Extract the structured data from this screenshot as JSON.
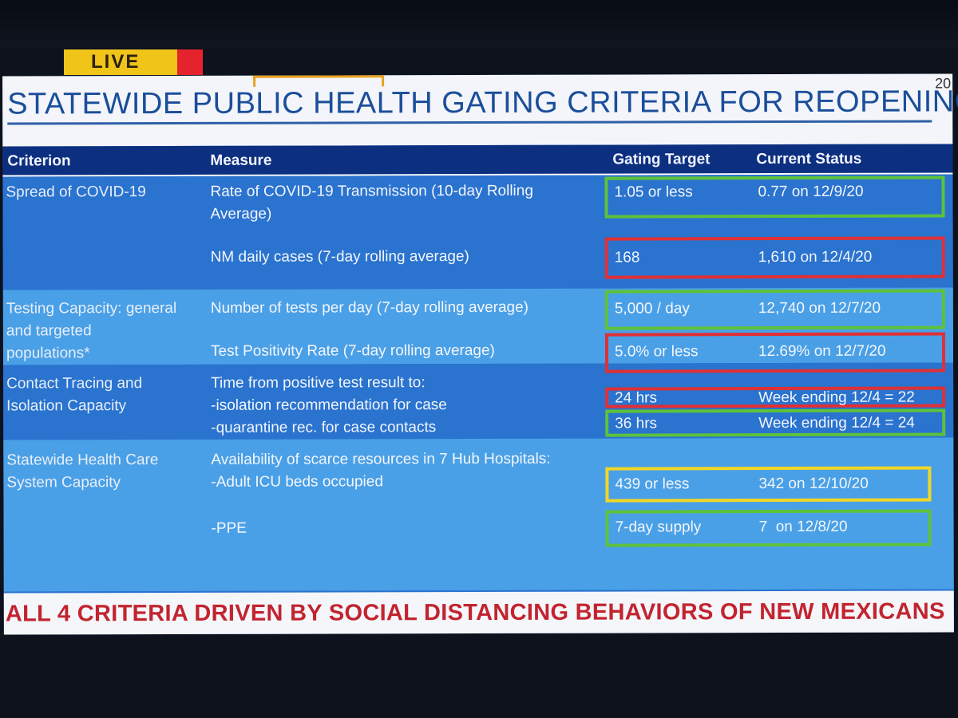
{
  "live_badge": {
    "label": "LIVE"
  },
  "slide": {
    "title": "STATEWIDE PUBLIC HEALTH GATING CRITERIA FOR REOPENING",
    "page_number": "20",
    "headers": {
      "criterion": "Criterion",
      "measure": "Measure",
      "target": "Gating Target",
      "status": "Current Status"
    },
    "criteria": [
      {
        "lines": [
          "Spread of COVID-19"
        ]
      },
      {
        "lines": [
          "Testing Capacity: general",
          "and targeted",
          "populations*"
        ]
      },
      {
        "lines": [
          "Contact Tracing and",
          "Isolation Capacity"
        ]
      },
      {
        "lines": [
          "Statewide Health Care",
          "System Capacity"
        ]
      }
    ],
    "measures": [
      {
        "lines": [
          "Rate of COVID-19 Transmission (10-day Rolling",
          "Average)"
        ]
      },
      {
        "lines": [
          "NM daily cases (7-day rolling average)"
        ]
      },
      {
        "lines": [
          "Number of tests per day (7-day rolling average)"
        ]
      },
      {
        "lines": [
          "Test Positivity Rate (7-day rolling average)"
        ]
      },
      {
        "lines": [
          "Time from positive test result to:",
          "-isolation recommendation for case",
          "-quarantine rec. for case contacts"
        ]
      },
      {
        "lines": [
          "Availability of scarce resources in 7 Hub Hospitals:",
          "-Adult ICU beds occupied"
        ]
      },
      {
        "lines": [
          "-PPE"
        ]
      }
    ],
    "targets": [
      {
        "target": "1.05 or less",
        "status": "0.77 on 12/9/20",
        "border": "green"
      },
      {
        "target": "168",
        "status": "1,610 on 12/4/20",
        "border": "red"
      },
      {
        "target": "5,000 / day",
        "status": "12,740 on 12/7/20",
        "border": "green"
      },
      {
        "target": "5.0% or less",
        "status": "12.69% on 12/7/20",
        "border": "red"
      },
      {
        "target": "24 hrs",
        "status": "Week ending 12/4 = 22",
        "border": "red"
      },
      {
        "target": "36 hrs",
        "status": "Week ending 12/4 = 24",
        "border": "green"
      },
      {
        "target": "439 or less",
        "status": "342 on 12/10/20",
        "border": "yellow"
      },
      {
        "target": "7-day supply",
        "status": "7  on 12/8/20",
        "border": "green"
      }
    ],
    "footer": "ALL 4 CRITERIA DRIVEN BY SOCIAL DISTANCING BEHAVIORS OF NEW MEXICANS"
  },
  "colors": {
    "band_dark": "#2a73cf",
    "band_light": "#4aa0e7",
    "header_bg": "#0d2f80",
    "title_text": "#1b4e9a",
    "footer_text": "#c2242f",
    "green_outline": "#5ec23a",
    "red_outline": "#e03035",
    "yellow_outline": "#f1d725",
    "live_yellow": "#f0c419",
    "live_red": "#e5232c"
  }
}
